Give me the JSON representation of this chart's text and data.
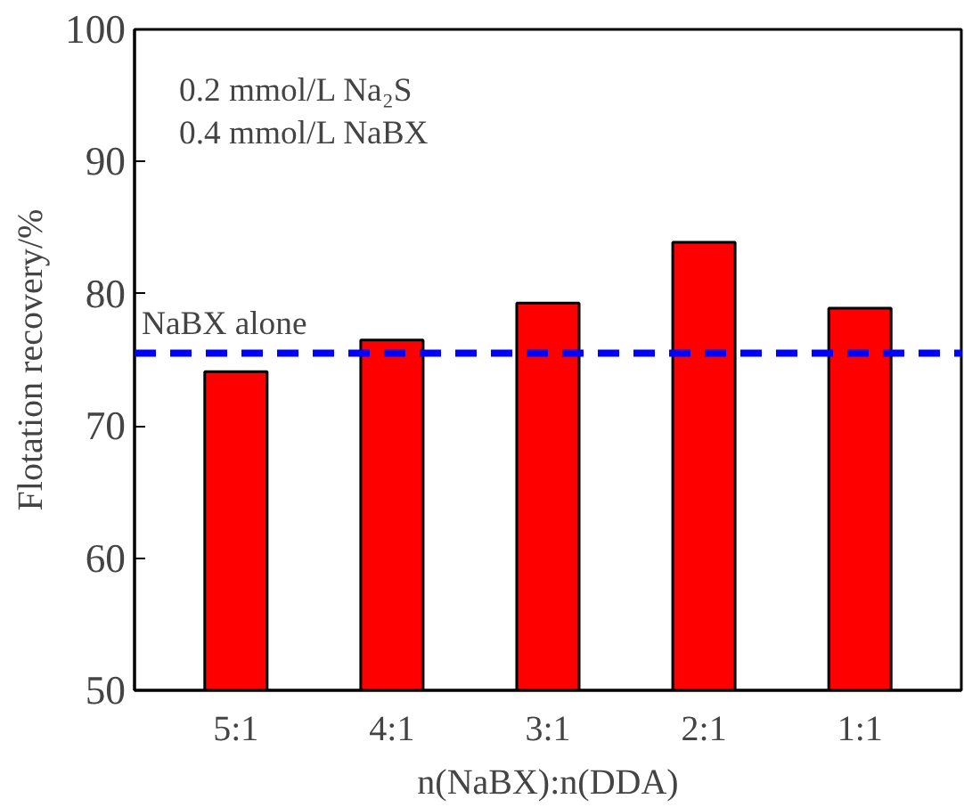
{
  "chart_data": {
    "type": "bar",
    "xlabel": "n(NaBX):n(DDA)",
    "ylabel": "Flotation recovery/%",
    "categories": [
      "5:1",
      "4:1",
      "3:1",
      "2:1",
      "1:1"
    ],
    "values": [
      74.1,
      76.5,
      79.3,
      83.9,
      78.9
    ],
    "color": "#ff0000",
    "ylim": [
      50,
      100
    ],
    "yticks": [
      50,
      60,
      70,
      80,
      90,
      100
    ],
    "grid": false,
    "ref_lines": [
      {
        "axis": "y",
        "value": 75.5,
        "label": "NaBX alone",
        "color": "#0000ff",
        "line_style": "dashed"
      }
    ],
    "annotations": [
      "0.2 mmol/L Na₂S",
      "0.4 mmol/L NaBX"
    ]
  }
}
